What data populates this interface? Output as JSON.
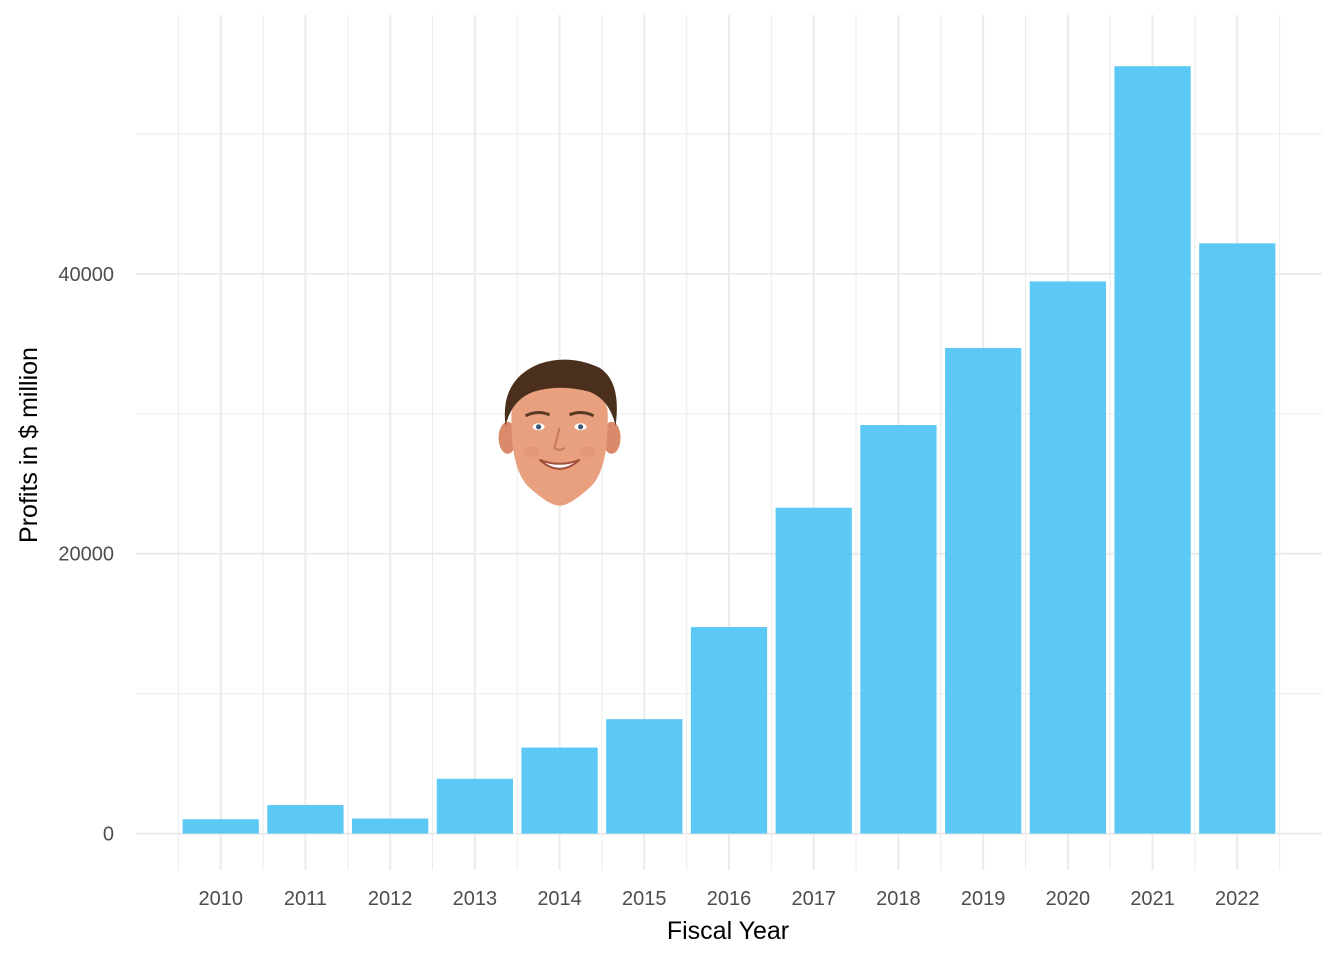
{
  "chart_data": {
    "type": "bar",
    "title": "",
    "xlabel": "Fiscal Year",
    "ylabel": "Profits in $ million",
    "categories": [
      "2010",
      "2011",
      "2012",
      "2013",
      "2014",
      "2015",
      "2016",
      "2017",
      "2018",
      "2019",
      "2020",
      "2021",
      "2022"
    ],
    "values": [
      1030,
      2040,
      1080,
      3920,
      6150,
      8180,
      14760,
      23290,
      29200,
      34700,
      39460,
      54840,
      42180
    ],
    "ylim": [
      -2600,
      58500
    ],
    "yticks": [
      0,
      20000,
      40000
    ],
    "grid": true,
    "legend": "none",
    "bar_color": "#5bc8f5",
    "grid_color": "#ebebeb",
    "annotation": {
      "type": "image",
      "description": "photo-cutout-face",
      "x_category": "2014",
      "y_value": 28500
    }
  }
}
